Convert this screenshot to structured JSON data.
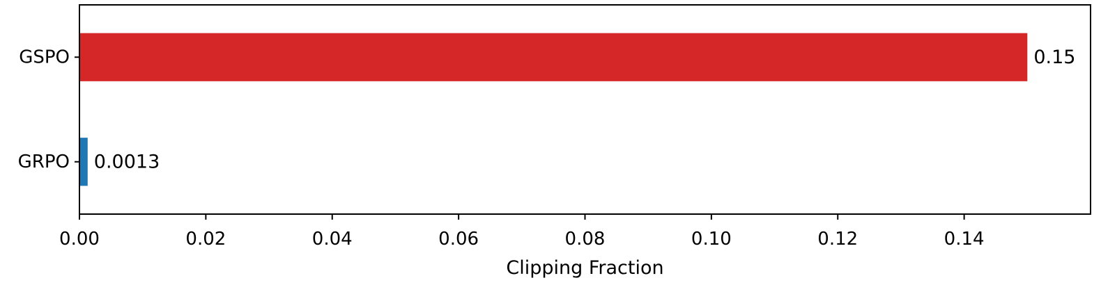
{
  "chart_data": {
    "type": "bar",
    "orientation": "horizontal",
    "categories": [
      "GSPO",
      "GRPO"
    ],
    "values": [
      0.15,
      0.0013
    ],
    "value_labels": [
      "0.15",
      "0.0013"
    ],
    "colors": [
      "#d62728",
      "#1f77b4"
    ],
    "title": "",
    "xlabel": "Clipping Fraction",
    "ylabel": "",
    "xlim": [
      0,
      0.16
    ],
    "xticks": [
      0.0,
      0.02,
      0.04,
      0.06,
      0.08,
      0.1,
      0.12,
      0.14
    ],
    "xtick_labels": [
      "0.00",
      "0.02",
      "0.04",
      "0.06",
      "0.08",
      "0.10",
      "0.12",
      "0.14"
    ],
    "grid": false,
    "legend": false
  }
}
